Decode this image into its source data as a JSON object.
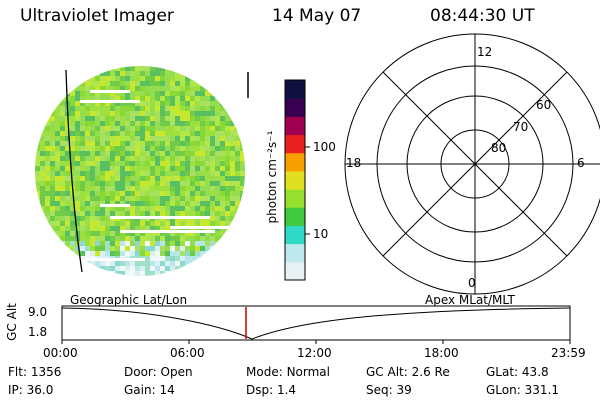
{
  "header": {
    "title": "Ultraviolet Imager",
    "date": "14 May 07",
    "time": "08:44:30 UT"
  },
  "colorbar": {
    "unit_label": "photon cm⁻²s⁻¹",
    "ticks": [
      {
        "label": "100",
        "value": 100
      },
      {
        "label": "10",
        "value": 10
      }
    ],
    "colors": [
      "#e8f2f4",
      "#bfe8ec",
      "#30d8c8",
      "#40c840",
      "#98e030",
      "#e0e020",
      "#f8a000",
      "#e82020",
      "#a00050",
      "#380050",
      "#101040"
    ]
  },
  "polar_plot": {
    "mlt_labels": {
      "top": "12",
      "right": "6",
      "bottom": "0",
      "left": "18"
    },
    "lat_labels": [
      "80",
      "70",
      "60"
    ]
  },
  "altitude_panel": {
    "ylabel": "GC Alt",
    "y_ticks": [
      "9.0",
      "1.8"
    ],
    "left_label": "Geographic Lat/Lon",
    "right_label": "Apex MLat/MLT",
    "x_ticks": [
      "00:00",
      "06:00",
      "12:00",
      "18:00",
      "23:59"
    ]
  },
  "status": {
    "row1": [
      {
        "key": "Flt:",
        "value": "1356"
      },
      {
        "key": "Door:",
        "value": "Open"
      },
      {
        "key": "Mode:",
        "value": "Normal"
      },
      {
        "key": "GC Alt:",
        "value": "2.6 Re"
      },
      {
        "key": "GLat:",
        "value": "43.8"
      }
    ],
    "row2": [
      {
        "key": "IP:",
        "value": "36.0"
      },
      {
        "key": "Gain:",
        "value": "14"
      },
      {
        "key": "Dsp:",
        "value": "1.4"
      },
      {
        "key": "Seq:",
        "value": "39"
      },
      {
        "key": "GLon:",
        "value": "331.1"
      }
    ]
  },
  "colors": {
    "marker": "#cc0000",
    "line": "#000000"
  }
}
